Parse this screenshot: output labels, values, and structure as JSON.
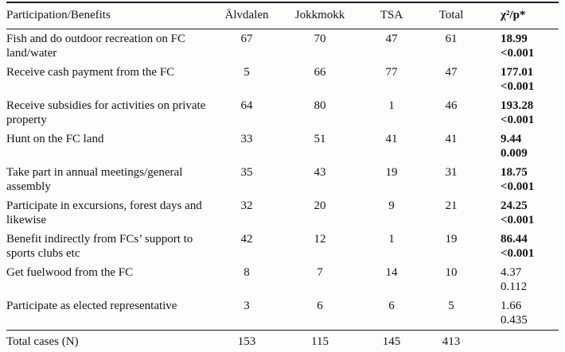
{
  "table": {
    "columns": [
      "Participation/Benefits",
      "Älvdalen",
      "Jokkmokk",
      "TSA",
      "Total",
      "χ²/p*"
    ],
    "rows": [
      {
        "label": "Fish and do outdoor recreation on FC land/water",
        "values": [
          "67",
          "70",
          "47",
          "61"
        ],
        "chi": "18.99",
        "p": "<0.001",
        "bold": true,
        "total": false
      },
      {
        "label": "Receive cash payment from the FC",
        "values": [
          "5",
          "66",
          "77",
          "47"
        ],
        "chi": "177.01",
        "p": "<0.001",
        "bold": true,
        "total": false
      },
      {
        "label": "Receive subsidies for activities on private property",
        "values": [
          "64",
          "80",
          "1",
          "46"
        ],
        "chi": "193.28",
        "p": "<0.001",
        "bold": true,
        "total": false
      },
      {
        "label": "Hunt on the FC land",
        "values": [
          "33",
          "51",
          "41",
          "41"
        ],
        "chi": "9.44",
        "p": "0.009",
        "bold": true,
        "total": false
      },
      {
        "label": "Take part in annual meetings/general assembly",
        "values": [
          "35",
          "43",
          "19",
          "31"
        ],
        "chi": "18.75",
        "p": "<0.001",
        "bold": true,
        "total": false
      },
      {
        "label": "Participate in excursions, forest days and likewise",
        "values": [
          "32",
          "20",
          "9",
          "21"
        ],
        "chi": "24.25",
        "p": "<0.001",
        "bold": true,
        "total": false
      },
      {
        "label": "Benefit indirectly from FCs’ support to sports clubs etc",
        "values": [
          "42",
          "12",
          "1",
          "19"
        ],
        "chi": "86.44",
        "p": "<0.001",
        "bold": true,
        "total": false
      },
      {
        "label": "Get fuelwood from the FC",
        "values": [
          "8",
          "7",
          "14",
          "10"
        ],
        "chi": "4.37",
        "p": "0.112",
        "bold": false,
        "total": false
      },
      {
        "label": "Participate as elected representative",
        "values": [
          "3",
          "6",
          "6",
          "5"
        ],
        "chi": "1.66",
        "p": "0.435",
        "bold": false,
        "total": false
      },
      {
        "label": "Total cases (N)",
        "values": [
          "153",
          "115",
          "145",
          "413"
        ],
        "chi": "",
        "p": "",
        "bold": false,
        "total": true
      }
    ]
  }
}
